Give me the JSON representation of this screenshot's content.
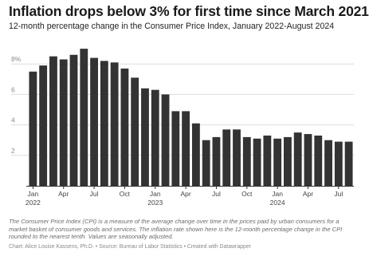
{
  "header": {
    "title": "Inflation drops below 3% for first time since March 2021",
    "subtitle": "12-month percentage change in the Consumer Price Index, January 2022-August 2024"
  },
  "footer": {
    "notes": "The Consumer Price Index (CPI) is a measure of the average change over time in the prices paid by urban consumers for a market basket of consumer goods and services. The inflation rate shown here is the 12-month percentage change in the CPI rounded to the nearest tenth. Values are seasonally adjusted.",
    "byline": "Chart: Alice Louise Kassens, Ph.D. • Source: Bureau of Labor Statistics • Created with Datawrapper"
  },
  "chart_data": {
    "type": "bar",
    "bar_color": "#333333",
    "grid_color": "#dddddd",
    "grid": true,
    "ylim": [
      0,
      10
    ],
    "yticks": [
      {
        "value": 2,
        "label": "2"
      },
      {
        "value": 4,
        "label": "4"
      },
      {
        "value": 6,
        "label": "6"
      },
      {
        "value": 8,
        "label": "8%"
      }
    ],
    "categories": [
      "Jan 2022",
      "Feb 2022",
      "Mar 2022",
      "Apr 2022",
      "May 2022",
      "Jun 2022",
      "Jul 2022",
      "Aug 2022",
      "Sep 2022",
      "Oct 2022",
      "Nov 2022",
      "Dec 2022",
      "Jan 2023",
      "Feb 2023",
      "Mar 2023",
      "Apr 2023",
      "May 2023",
      "Jun 2023",
      "Jul 2023",
      "Aug 2023",
      "Sep 2023",
      "Oct 2023",
      "Nov 2023",
      "Dec 2023",
      "Jan 2024",
      "Feb 2024",
      "Mar 2024",
      "Apr 2024",
      "May 2024",
      "Jun 2024",
      "Jul 2024",
      "Aug 2024"
    ],
    "values": [
      7.5,
      7.9,
      8.5,
      8.3,
      8.6,
      9.0,
      8.4,
      8.2,
      8.1,
      7.7,
      7.1,
      6.4,
      6.3,
      6.0,
      4.9,
      4.9,
      4.1,
      3.0,
      3.2,
      3.7,
      3.7,
      3.2,
      3.1,
      3.3,
      3.1,
      3.2,
      3.5,
      3.4,
      3.3,
      3.0,
      2.9,
      2.9
    ],
    "x_ticks": [
      {
        "index": 0,
        "label": "Jan",
        "year": "2022"
      },
      {
        "index": 3,
        "label": "Apr",
        "year": ""
      },
      {
        "index": 6,
        "label": "Jul",
        "year": ""
      },
      {
        "index": 9,
        "label": "Oct",
        "year": ""
      },
      {
        "index": 12,
        "label": "Jan",
        "year": "2023"
      },
      {
        "index": 15,
        "label": "Apr",
        "year": ""
      },
      {
        "index": 18,
        "label": "Jul",
        "year": ""
      },
      {
        "index": 21,
        "label": "Oct",
        "year": ""
      },
      {
        "index": 24,
        "label": "Jan",
        "year": "2024"
      },
      {
        "index": 27,
        "label": "Apr",
        "year": ""
      },
      {
        "index": 30,
        "label": "Jul",
        "year": ""
      }
    ]
  }
}
